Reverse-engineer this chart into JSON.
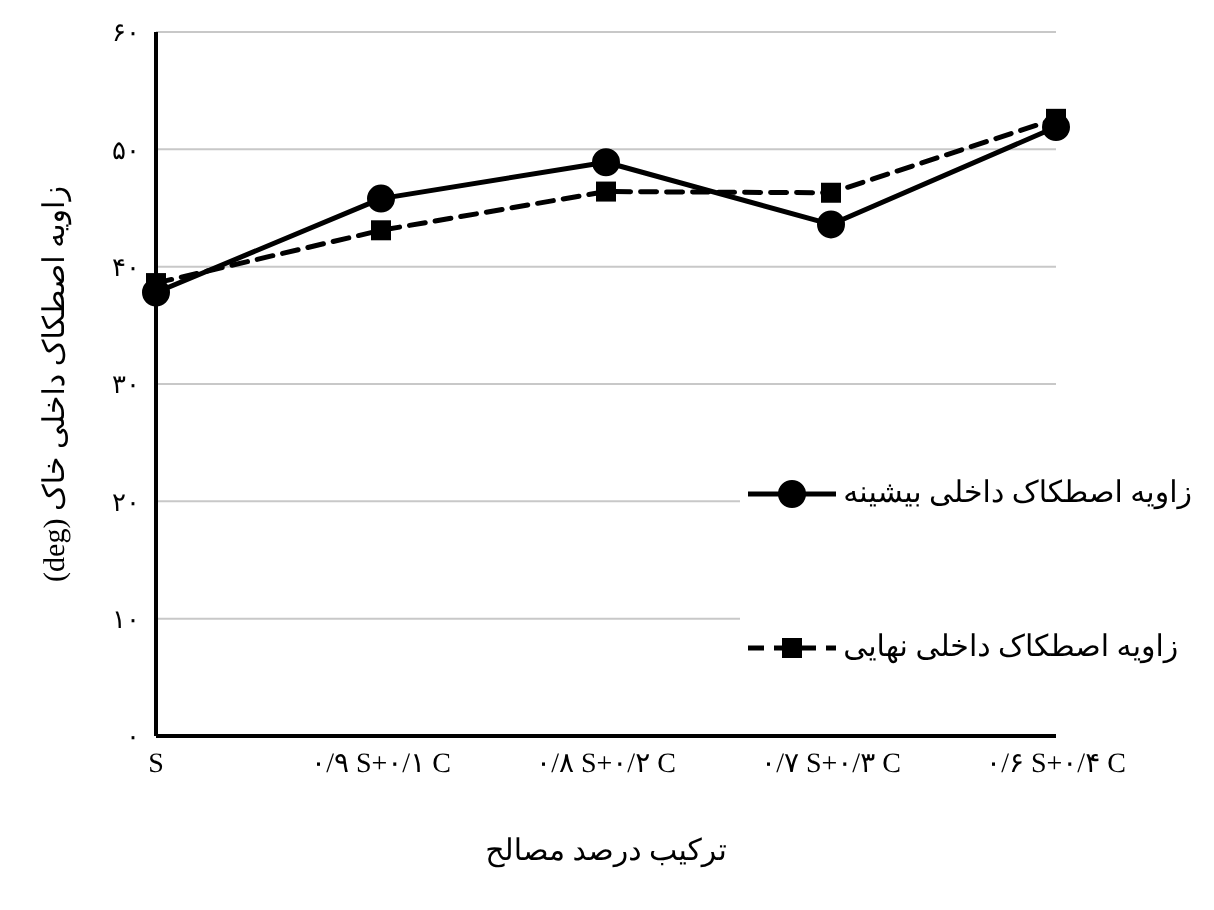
{
  "chart_data": {
    "type": "line",
    "xlabel": "ترکیب درصد مصالح",
    "ylabel": "زاویه اصطکاک داخلی خاک (deg)",
    "categories": [
      "S",
      "۰/۹ S+۰/۱ C",
      "۰/۸ S+۰/۲ C",
      "۰/۷ S+۰/۳ C",
      "۰/۶ S+۰/۴ C"
    ],
    "series": [
      {
        "name": "زاویه اصطکاک داخلی بیشینه",
        "color": "#000000",
        "marker": "circle",
        "line_style": "solid",
        "values": [
          37.8,
          45.8,
          48.9,
          43.6,
          51.9
        ]
      },
      {
        "name": "زاویه اصطکاک داخلی نهایی",
        "color": "#000000",
        "marker": "square",
        "line_style": "dashed",
        "values": [
          38.6,
          43.1,
          46.4,
          46.3,
          52.6
        ]
      }
    ],
    "ylim": [
      0,
      60
    ],
    "yticks": [
      {
        "value": 0,
        "label": "۰"
      },
      {
        "value": 10,
        "label": "۱۰"
      },
      {
        "value": 20,
        "label": "۲۰"
      },
      {
        "value": 30,
        "label": "۳۰"
      },
      {
        "value": 40,
        "label": "۴۰"
      },
      {
        "value": 50,
        "label": "۵۰"
      },
      {
        "value": 60,
        "label": "۶۰"
      }
    ],
    "grid": "y",
    "legend": "right"
  }
}
